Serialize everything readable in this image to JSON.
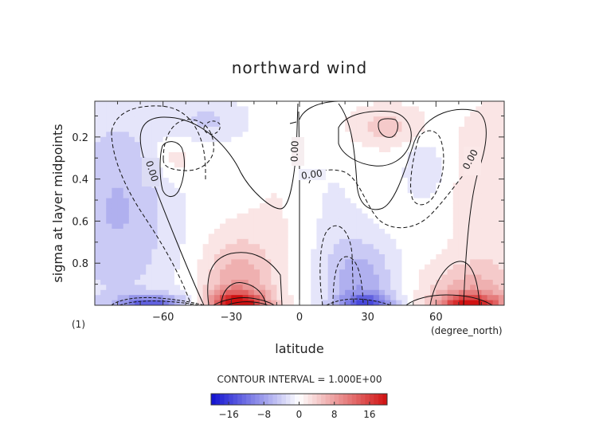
{
  "chart_data": {
    "type": "heatmap",
    "title": "northward wind",
    "xlabel": "latitude",
    "ylabel": "sigma at layer midpoints",
    "x_unit_label": "(degree_north)",
    "panel_label": "(1)",
    "xlim": [
      -90,
      90
    ],
    "ylim": [
      1.0,
      0.03
    ],
    "x_ticks": [
      -60,
      -30,
      0,
      30,
      60
    ],
    "x_tick_labels": [
      "−60",
      "−30",
      "0",
      "30",
      "60"
    ],
    "y_ticks": [
      0.2,
      0.4,
      0.6,
      0.8
    ],
    "y_tick_labels": [
      "0.2",
      "0.4",
      "0.6",
      "0.8"
    ],
    "contour_interval_label": "CONTOUR INTERVAL = 1.000E+00",
    "contour_interval": 1.0,
    "zero_contour_labels": [
      "0.00",
      "0.00",
      "0.00",
      "0.00"
    ],
    "colorbar": {
      "min": -20,
      "max": 20,
      "ticks": [
        -16,
        -8,
        0,
        8,
        16
      ],
      "tick_labels": [
        "−16",
        "−8",
        "0",
        "8",
        "16"
      ],
      "colormap": "blue-white-red",
      "low_color": "#1010d0",
      "mid_color": "#ffffff",
      "high_color": "#d01010"
    }
  }
}
